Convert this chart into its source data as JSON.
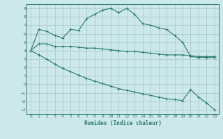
{
  "xlabel": "Humidex (Indice chaleur)",
  "xlim": [
    -0.5,
    23.5
  ],
  "ylim": [
    -3.5,
    9.5
  ],
  "yticks": [
    -3,
    -2,
    -1,
    0,
    1,
    2,
    3,
    4,
    5,
    6,
    7,
    8,
    9
  ],
  "xticks": [
    0,
    1,
    2,
    3,
    4,
    5,
    6,
    7,
    8,
    9,
    10,
    11,
    12,
    13,
    14,
    15,
    16,
    17,
    18,
    19,
    20,
    21,
    22,
    23
  ],
  "bg_color": "#cce8e8",
  "grid_color": "#aacccc",
  "line_color": "#2a7a6e",
  "line1_x": [
    0,
    1,
    2,
    3,
    4,
    5,
    6,
    7,
    8,
    9,
    10,
    11,
    12,
    13,
    14,
    15,
    16,
    17,
    18,
    19,
    20,
    21,
    22,
    23
  ],
  "line1_y": [
    4.0,
    6.5,
    6.3,
    5.8,
    5.5,
    6.5,
    6.4,
    7.8,
    8.3,
    8.8,
    9.0,
    8.5,
    9.0,
    8.3,
    7.2,
    7.0,
    6.7,
    6.5,
    5.8,
    5.0,
    3.3,
    3.2,
    3.2,
    3.2
  ],
  "line2_x": [
    0,
    1,
    2,
    3,
    4,
    5,
    6,
    7,
    8,
    9,
    10,
    11,
    12,
    13,
    14,
    15,
    16,
    17,
    18,
    19,
    20,
    21,
    22,
    23
  ],
  "line2_y": [
    4.0,
    4.8,
    4.8,
    4.5,
    4.5,
    4.5,
    4.4,
    4.3,
    4.3,
    4.2,
    4.1,
    4.0,
    3.9,
    3.9,
    3.8,
    3.7,
    3.6,
    3.5,
    3.5,
    3.5,
    3.4,
    3.3,
    3.3,
    3.3
  ],
  "line3_x": [
    0,
    1,
    2,
    3,
    4,
    5,
    6,
    7,
    8,
    9,
    10,
    11,
    12,
    13,
    14,
    15,
    16,
    17,
    18,
    19,
    20,
    21,
    22,
    23
  ],
  "line3_y": [
    4.0,
    3.5,
    3.0,
    2.4,
    1.9,
    1.5,
    1.1,
    0.7,
    0.4,
    0.1,
    -0.2,
    -0.5,
    -0.7,
    -0.9,
    -1.1,
    -1.3,
    -1.5,
    -1.7,
    -1.8,
    -1.9,
    -0.6,
    -1.5,
    -2.2,
    -3.0
  ]
}
